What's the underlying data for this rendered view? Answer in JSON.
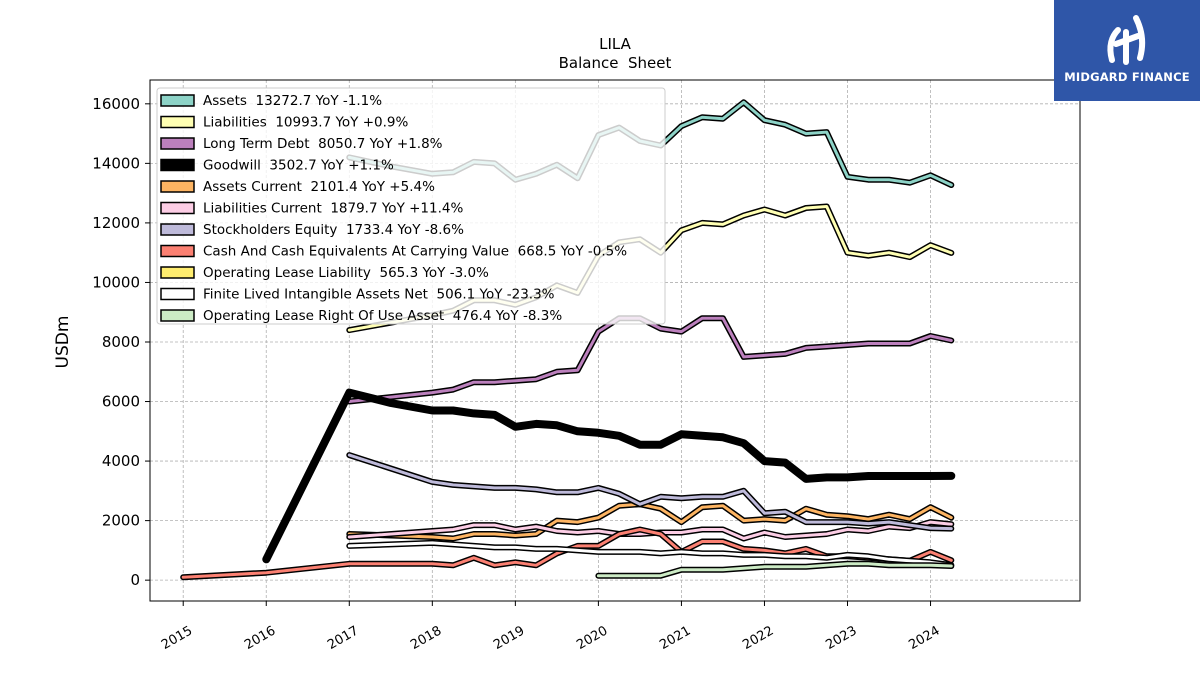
{
  "logo": {
    "text": "MIDGARD FINANCE",
    "bg": "#2f56a8"
  },
  "chart_data": {
    "type": "line",
    "title": "LILA",
    "subtitle": "Balance  Sheet",
    "ylabel": "USDm",
    "xlabel": "",
    "xlim": [
      2014.6,
      2025.8
    ],
    "ylim": [
      -700,
      16800
    ],
    "yticks": [
      0,
      2000,
      4000,
      6000,
      8000,
      10000,
      12000,
      14000,
      16000
    ],
    "xticks": [
      2015,
      2016,
      2017,
      2018,
      2019,
      2020,
      2021,
      2022,
      2023,
      2024
    ],
    "grid": true,
    "legend_position": "top-left",
    "series": [
      {
        "name": "Assets  13272.7 YoY -1.1%",
        "color": "#8dd3c7",
        "width": 3,
        "x": [
          2017.0,
          2017.5,
          2018.0,
          2018.25,
          2018.5,
          2018.75,
          2019.0,
          2019.25,
          2019.5,
          2019.75,
          2020.0,
          2020.25,
          2020.5,
          2020.75,
          2021.0,
          2021.25,
          2021.5,
          2021.75,
          2022.0,
          2022.25,
          2022.5,
          2022.75,
          2023.0,
          2023.25,
          2023.5,
          2023.75,
          2024.0,
          2024.25
        ],
        "y": [
          14200,
          13900,
          13650,
          13700,
          14050,
          14000,
          13450,
          13650,
          13950,
          13500,
          14950,
          15200,
          14750,
          14600,
          15250,
          15550,
          15500,
          16050,
          15450,
          15300,
          15000,
          15050,
          13550,
          13450,
          13450,
          13350,
          13600,
          13273
        ]
      },
      {
        "name": "Liabilities  10993.7 YoY +0.9%",
        "color": "#ffffb3",
        "width": 3,
        "x": [
          2017.0,
          2018.0,
          2018.25,
          2018.5,
          2018.75,
          2019.0,
          2019.25,
          2019.5,
          2019.75,
          2020.0,
          2020.25,
          2020.5,
          2020.75,
          2021.0,
          2021.25,
          2021.5,
          2021.75,
          2022.0,
          2022.25,
          2022.5,
          2022.75,
          2023.0,
          2023.25,
          2023.5,
          2023.75,
          2024.0,
          2024.25
        ],
        "y": [
          8400,
          8900,
          9050,
          9400,
          9400,
          9250,
          9500,
          9900,
          9650,
          10900,
          11350,
          11450,
          11000,
          11750,
          12000,
          11950,
          12250,
          12450,
          12250,
          12500,
          12550,
          11000,
          10900,
          11000,
          10850,
          11250,
          10994
        ]
      },
      {
        "name": "Long Term Debt  8050.7 YoY +1.8%",
        "color": "#bc80bd",
        "width": 3,
        "x": [
          2017.0,
          2018.0,
          2018.25,
          2018.5,
          2018.75,
          2019.0,
          2019.25,
          2019.5,
          2019.75,
          2020.0,
          2020.25,
          2020.5,
          2020.75,
          2021.0,
          2021.25,
          2021.5,
          2021.75,
          2022.0,
          2022.25,
          2022.5,
          2022.75,
          2023.0,
          2023.25,
          2023.5,
          2023.75,
          2024.0,
          2024.25
        ],
        "y": [
          6000,
          6300,
          6400,
          6650,
          6650,
          6700,
          6750,
          7000,
          7050,
          8350,
          8800,
          8800,
          8450,
          8350,
          8800,
          8800,
          7500,
          7550,
          7600,
          7800,
          7850,
          7900,
          7950,
          7950,
          7950,
          8200,
          8051
        ]
      },
      {
        "name": "Goodwill  3502.7 YoY +1.1%",
        "color": "#000000",
        "width": 8,
        "x": [
          2016.0,
          2017.0,
          2017.5,
          2018.0,
          2018.25,
          2018.5,
          2018.75,
          2019.0,
          2019.25,
          2019.5,
          2019.75,
          2020.0,
          2020.25,
          2020.5,
          2020.75,
          2021.0,
          2021.25,
          2021.5,
          2021.75,
          2022.0,
          2022.25,
          2022.5,
          2022.75,
          2023.0,
          2023.25,
          2023.5,
          2023.75,
          2024.0,
          2024.25
        ],
        "y": [
          700,
          6300,
          5950,
          5700,
          5700,
          5600,
          5550,
          5150,
          5250,
          5200,
          5000,
          4950,
          4850,
          4550,
          4550,
          4900,
          4850,
          4800,
          4600,
          4000,
          3950,
          3400,
          3450,
          3450,
          3500,
          3500,
          3500,
          3500,
          3503
        ]
      },
      {
        "name": "Assets Current  2101.4 YoY +5.4%",
        "color": "#fdb462",
        "width": 3,
        "x": [
          2017.0,
          2018.0,
          2018.25,
          2018.5,
          2018.75,
          2019.0,
          2019.25,
          2019.5,
          2019.75,
          2020.0,
          2020.25,
          2020.5,
          2020.75,
          2021.0,
          2021.25,
          2021.5,
          2021.75,
          2022.0,
          2022.25,
          2022.5,
          2022.75,
          2023.0,
          2023.25,
          2023.5,
          2023.75,
          2024.0,
          2024.25
        ],
        "y": [
          1550,
          1450,
          1400,
          1550,
          1550,
          1500,
          1550,
          2000,
          1950,
          2100,
          2500,
          2550,
          2400,
          1950,
          2450,
          2500,
          2000,
          2050,
          2000,
          2400,
          2200,
          2150,
          2050,
          2200,
          2050,
          2450,
          2101
        ]
      },
      {
        "name": "Liabilities Current  1879.7 YoY +11.4%",
        "color": "#fccde5",
        "width": 3,
        "x": [
          2017.0,
          2018.0,
          2018.25,
          2018.5,
          2018.75,
          2019.0,
          2019.25,
          2019.5,
          2019.75,
          2020.0,
          2020.25,
          2020.5,
          2020.75,
          2021.0,
          2021.25,
          2021.5,
          2021.75,
          2022.0,
          2022.25,
          2022.5,
          2022.75,
          2023.0,
          2023.25,
          2023.5,
          2023.75,
          2024.0,
          2024.25
        ],
        "y": [
          1450,
          1650,
          1700,
          1850,
          1850,
          1700,
          1800,
          1650,
          1600,
          1650,
          1550,
          1550,
          1600,
          1600,
          1700,
          1700,
          1400,
          1600,
          1450,
          1500,
          1550,
          1700,
          1650,
          1800,
          1750,
          1950,
          1880
        ]
      },
      {
        "name": "Stockholders Equity  1733.4 YoY -8.6%",
        "color": "#bebada",
        "width": 3,
        "x": [
          2017.0,
          2018.0,
          2018.25,
          2018.5,
          2018.75,
          2019.0,
          2019.25,
          2019.5,
          2019.75,
          2020.0,
          2020.25,
          2020.5,
          2020.75,
          2021.0,
          2021.25,
          2021.5,
          2021.75,
          2022.0,
          2022.25,
          2022.5,
          2022.75,
          2023.0,
          2023.25,
          2023.5,
          2023.75,
          2024.0,
          2024.25
        ],
        "y": [
          4200,
          3300,
          3200,
          3150,
          3100,
          3100,
          3050,
          2950,
          2950,
          3100,
          2900,
          2550,
          2800,
          2750,
          2800,
          2800,
          3000,
          2250,
          2300,
          1950,
          1950,
          1950,
          1900,
          1950,
          1850,
          1750,
          1733
        ]
      },
      {
        "name": "Cash And Cash Equivalents At Carrying Value  668.5 YoY -0.5%",
        "color": "#fb8072",
        "width": 3,
        "x": [
          2015.0,
          2016.0,
          2017.0,
          2018.0,
          2018.25,
          2018.5,
          2018.75,
          2019.0,
          2019.25,
          2019.5,
          2019.75,
          2020.0,
          2020.25,
          2020.5,
          2020.75,
          2021.0,
          2021.25,
          2021.5,
          2021.75,
          2022.0,
          2022.25,
          2022.5,
          2022.75,
          2023.0,
          2023.25,
          2023.5,
          2023.75,
          2024.0,
          2024.25
        ],
        "y": [
          100,
          250,
          550,
          550,
          500,
          750,
          500,
          600,
          500,
          900,
          1150,
          1150,
          1550,
          1700,
          1550,
          950,
          1300,
          1300,
          1050,
          1000,
          900,
          1050,
          800,
          800,
          750,
          700,
          650,
          950,
          668
        ]
      },
      {
        "name": "Operating Lease Liability  565.3 YoY -3.0%",
        "color": "#ffed6f",
        "width": 3,
        "x": [],
        "y": []
      },
      {
        "name": "Finite Lived Intangible Assets Net  506.1 YoY -23.3%",
        "color": "#ffffff",
        "width": 3,
        "x": [
          2017.0,
          2018.0,
          2018.25,
          2018.5,
          2018.75,
          2019.0,
          2019.25,
          2019.5,
          2019.75,
          2020.0,
          2020.25,
          2020.5,
          2020.75,
          2021.0,
          2021.25,
          2021.5,
          2021.75,
          2022.0,
          2022.25,
          2022.5,
          2022.75,
          2023.0,
          2023.25,
          2023.5,
          2023.75,
          2024.0,
          2024.25
        ],
        "y": [
          1150,
          1250,
          1200,
          1150,
          1100,
          1100,
          1050,
          1050,
          1000,
          950,
          950,
          950,
          900,
          950,
          900,
          900,
          850,
          850,
          800,
          800,
          750,
          850,
          800,
          700,
          650,
          600,
          506
        ]
      },
      {
        "name": "Operating Lease Right Of Use Asset  476.4 YoY -8.3%",
        "color": "#ccebc5",
        "width": 3,
        "x": [
          2020.0,
          2020.25,
          2020.5,
          2020.75,
          2021.0,
          2021.25,
          2021.5,
          2021.75,
          2022.0,
          2022.25,
          2022.5,
          2022.75,
          2023.0,
          2023.25,
          2023.5,
          2023.75,
          2024.0,
          2024.25
        ],
        "y": [
          150,
          150,
          150,
          150,
          350,
          350,
          350,
          400,
          450,
          450,
          450,
          500,
          550,
          550,
          500,
          500,
          500,
          476
        ]
      }
    ]
  }
}
